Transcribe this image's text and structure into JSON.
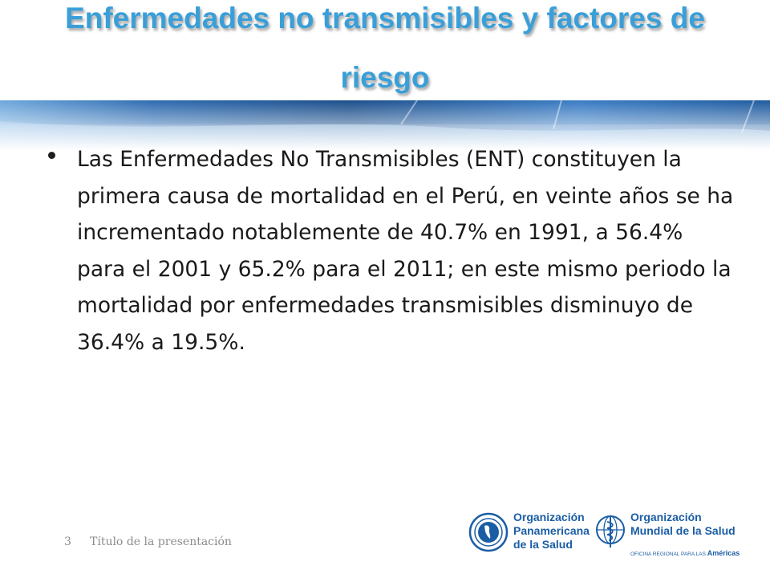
{
  "slide": {
    "title": "Enfermedades no transmisibles y factores de riesgo",
    "bullets": [
      "Las Enfermedades No Transmisibles (ENT) constituyen la primera causa de mortalidad en el Perú, en veinte años se ha incrementado notablemente de 40.7% en 1991, a 56.4% para el 2001 y 65.2% para el 2011; en este mismo periodo la mortalidad por enfermedades transmisibles disminuyo de 36.4% a 19.5%."
    ]
  },
  "footer": {
    "page_number": "3",
    "presentation_title": "Título de la presentación"
  },
  "logos": {
    "ops": {
      "line1": "Organización",
      "line2": "Panamericana",
      "line3": "de la Salud"
    },
    "oms": {
      "line1": "Organización",
      "line2": "Mundial de la Salud",
      "sub_prefix": "OFICINA REGIONAL PARA LAS",
      "sub_region": "Américas"
    }
  },
  "colors": {
    "title": "#3A9FD8",
    "band_dark": "#1B4E8A",
    "band_light": "#7FB8E6",
    "logo_blue": "#1B5DA5",
    "footer_gray": "#8C8C8C"
  }
}
